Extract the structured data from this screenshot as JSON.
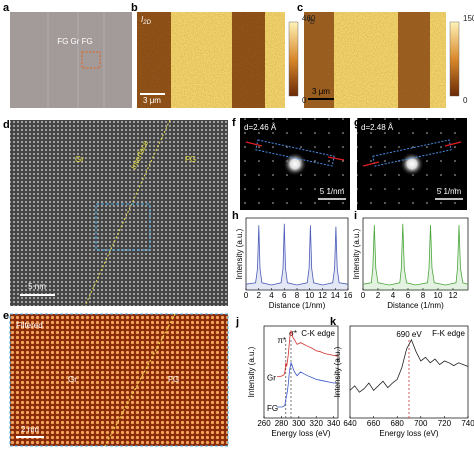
{
  "labels": {
    "a": "a",
    "b": "b",
    "c": "c",
    "d": "d",
    "e": "e",
    "f": "f",
    "g": "g",
    "h": "h",
    "i": "i",
    "j": "j",
    "k": "k"
  },
  "a": {
    "text": "FG Gr FG"
  },
  "b": {
    "label": "I",
    "sub": "2D",
    "scale": "3 μm",
    "cbar_ticks": [
      0,
      460
    ]
  },
  "c": {
    "label": "I",
    "sub": "D",
    "scale": "3 μm",
    "cbar_ticks": [
      0,
      1500
    ]
  },
  "d": {
    "gr": "Gr",
    "interface": "Interface",
    "fg": "FG",
    "scale": "5 nm"
  },
  "e": {
    "filtered": "Filtered",
    "gr": "Gr",
    "fg": "FG",
    "scale": "2 nm"
  },
  "f": {
    "d": "d=2.46 Å",
    "scale": "5 1/nm"
  },
  "g": {
    "d": "d=2.48 Å",
    "scale": "5 1/nm"
  },
  "chart_data": [
    {
      "type": "line",
      "xlabel": "Distance (1/nm)",
      "ylabel": "Intensity (a.u.)",
      "xlim": [
        0,
        16
      ],
      "xticks": [
        0,
        2,
        4,
        6,
        8,
        10,
        12,
        14,
        16
      ],
      "ylim": [
        0,
        1
      ],
      "area": true,
      "x": [
        0,
        1.5,
        1.8,
        2,
        2.2,
        2.5,
        4,
        5.5,
        5.8,
        6,
        6.2,
        6.5,
        8,
        9.6,
        9.9,
        10.1,
        10.3,
        10.6,
        12,
        13.6,
        13.9,
        14.1,
        14.3,
        14.6,
        16
      ],
      "series": [
        {
          "color": "#4a5bb8",
          "values": [
            0.08,
            0.1,
            0.3,
            0.9,
            0.3,
            0.1,
            0.07,
            0.1,
            0.3,
            0.92,
            0.3,
            0.1,
            0.07,
            0.1,
            0.3,
            0.9,
            0.3,
            0.1,
            0.07,
            0.1,
            0.3,
            0.88,
            0.3,
            0.1,
            0.08
          ]
        }
      ]
    },
    {
      "type": "line",
      "xlabel": "Distance (1/nm)",
      "ylabel": "Intensity (a.u.)",
      "xlim": [
        0,
        14
      ],
      "xticks": [
        0,
        2,
        4,
        6,
        8,
        10,
        12
      ],
      "ylim": [
        0,
        1
      ],
      "area": true,
      "x": [
        0,
        1.1,
        1.3,
        1.5,
        1.7,
        2,
        3.5,
        4.9,
        5.1,
        5.3,
        5.5,
        5.8,
        7,
        8.6,
        8.8,
        9,
        9.2,
        9.5,
        11,
        12.4,
        12.6,
        12.8,
        13,
        13.3,
        14
      ],
      "series": [
        {
          "color": "#4aa63a",
          "values": [
            0.08,
            0.1,
            0.3,
            0.9,
            0.3,
            0.1,
            0.07,
            0.1,
            0.3,
            0.92,
            0.3,
            0.1,
            0.07,
            0.1,
            0.3,
            0.9,
            0.3,
            0.1,
            0.07,
            0.1,
            0.3,
            0.9,
            0.3,
            0.1,
            0.08
          ]
        }
      ]
    },
    {
      "type": "line",
      "xlabel": "Energy loss (eV)",
      "ylabel": "Intensity (a.u.)",
      "xlim": [
        260,
        345
      ],
      "xticks": [
        260,
        280,
        300,
        320,
        340
      ],
      "ylim": [
        0,
        1
      ],
      "note": "C-K edge",
      "vlines": [
        {
          "value": 285,
          "label": "π*"
        },
        {
          "value": 291,
          "label": "σ*"
        }
      ],
      "x": [
        275,
        278,
        281,
        283,
        284,
        285,
        286,
        287,
        288,
        289,
        290,
        291,
        292,
        293,
        295,
        298,
        302,
        306,
        310,
        315,
        320,
        325,
        330,
        335,
        340,
        345
      ],
      "series": [
        {
          "name": "Gr",
          "color": "#d0312d",
          "values": [
            0.45,
            0.45,
            0.46,
            0.47,
            0.5,
            0.6,
            0.56,
            0.62,
            0.7,
            0.8,
            0.9,
            0.95,
            0.92,
            0.88,
            0.85,
            0.8,
            0.82,
            0.8,
            0.78,
            0.76,
            0.73,
            0.72,
            0.7,
            0.69,
            0.68,
            0.67
          ]
        },
        {
          "name": "FG",
          "color": "#3a56c8",
          "values": [
            0.12,
            0.12,
            0.12,
            0.13,
            0.14,
            0.2,
            0.24,
            0.3,
            0.38,
            0.48,
            0.55,
            0.6,
            0.58,
            0.55,
            0.5,
            0.46,
            0.5,
            0.48,
            0.46,
            0.44,
            0.42,
            0.41,
            0.4,
            0.39,
            0.38,
            0.38
          ]
        }
      ]
    },
    {
      "type": "line",
      "xlabel": "Energy loss (eV)",
      "ylabel": "Intensity (a.u.)",
      "xlim": [
        640,
        740
      ],
      "xticks": [
        640,
        660,
        680,
        700,
        720,
        740
      ],
      "ylim": [
        0,
        1
      ],
      "note": "F-K edge",
      "vlines": [
        {
          "value": 690,
          "label": "690 eV"
        }
      ],
      "x": [
        640,
        644,
        648,
        652,
        656,
        660,
        664,
        668,
        672,
        676,
        680,
        684,
        688,
        692,
        696,
        700,
        704,
        708,
        712,
        716,
        720,
        724,
        728,
        732,
        736,
        740
      ],
      "series": [
        {
          "color": "#222222",
          "values": [
            0.3,
            0.35,
            0.28,
            0.32,
            0.38,
            0.3,
            0.35,
            0.4,
            0.33,
            0.38,
            0.42,
            0.55,
            0.75,
            0.85,
            0.72,
            0.62,
            0.66,
            0.6,
            0.64,
            0.58,
            0.62,
            0.6,
            0.57,
            0.6,
            0.58,
            0.56
          ]
        }
      ]
    }
  ]
}
